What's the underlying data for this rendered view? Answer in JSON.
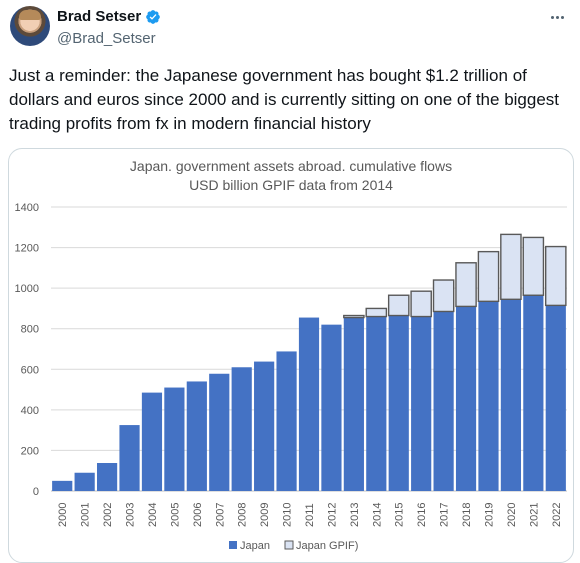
{
  "author": {
    "display_name": "Brad Setser",
    "handle": "@Brad_Setser"
  },
  "icons": {
    "verified": "verified-badge-icon",
    "more": "more-options-icon"
  },
  "colors": {
    "verified": "#1d9bf0",
    "japan": "#4472c4",
    "gpif": "#dae3f3"
  },
  "tweet": {
    "text": "Just a reminder: the Japanese government has bought $1.2 trillion of dollars and euros since 2000 and is currently sitting on one of the biggest trading profits from fx in modern financial history"
  },
  "chart_data": {
    "type": "bar",
    "stacked": true,
    "title_line1": "Japan.  government assets abroad.  cumulative flows",
    "title_line2": "USD billion GPIF data from 2014",
    "categories": [
      "2000",
      "2001",
      "2002",
      "2003",
      "2004",
      "2005",
      "2006",
      "2007",
      "2008",
      "2009",
      "2010",
      "2011",
      "2012",
      "2013",
      "2014",
      "2015",
      "2016",
      "2017",
      "2018",
      "2019",
      "2020",
      "2021",
      "2022"
    ],
    "series": [
      {
        "name": "Japan",
        "values": [
          50,
          90,
          138,
          325,
          485,
          510,
          540,
          578,
          610,
          638,
          688,
          855,
          820,
          855,
          860,
          865,
          860,
          885,
          910,
          935,
          945,
          965,
          915
        ]
      },
      {
        "name": "Japan GPIF)",
        "values": [
          0,
          0,
          0,
          0,
          0,
          0,
          0,
          0,
          0,
          0,
          0,
          0,
          0,
          10,
          40,
          100,
          125,
          155,
          215,
          245,
          320,
          285,
          290
        ]
      }
    ],
    "yticks": [
      "0",
      "200",
      "400",
      "600",
      "800",
      "1000",
      "1200",
      "1400"
    ],
    "ylim": [
      0,
      1400
    ],
    "grid": true,
    "legend_position": "bottom"
  }
}
